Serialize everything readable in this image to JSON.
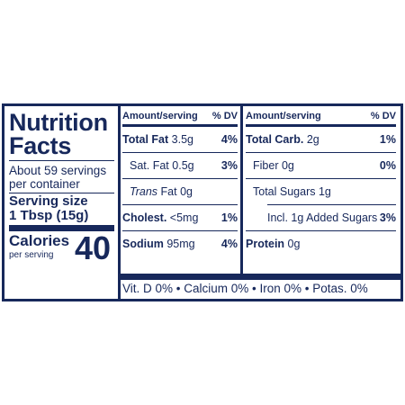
{
  "title_line1": "Nutrition",
  "title_line2": "Facts",
  "servings_per_container": "About 59 servings per container",
  "serving_size_label": "Serving size",
  "serving_size_value": "1 Tbsp (15g)",
  "calories_label": "Calories",
  "calories_sub": "per serving",
  "calories_value": "40",
  "col1": {
    "header_left": "Amount/serving",
    "header_right": "% DV",
    "rows": [
      {
        "name": "Total Fat",
        "amount": "3.5g",
        "dv": "4%"
      },
      {
        "name": "Sat. Fat",
        "amount": "0.5g",
        "dv": "3%"
      },
      {
        "name_italic": "Trans",
        "name": "Fat",
        "amount": "0g",
        "dv": ""
      },
      {
        "name": "Cholest.",
        "amount": "<5mg",
        "dv": "1%"
      },
      {
        "name": "Sodium",
        "amount": "95mg",
        "dv": "4%"
      }
    ]
  },
  "col2": {
    "header_left": "Amount/serving",
    "header_right": "% DV",
    "rows": [
      {
        "name": "Total Carb.",
        "amount": "2g",
        "dv": "1%"
      },
      {
        "name": "Fiber",
        "amount": "0g",
        "dv": "0%"
      },
      {
        "name": "Total Sugars",
        "amount": "1g",
        "dv": ""
      },
      {
        "name": "Incl. 1g Added Sugars",
        "amount": "",
        "dv": "3%"
      },
      {
        "name": "Protein",
        "amount": "0g",
        "dv": ""
      }
    ]
  },
  "vitamins": "Vit. D 0% • Calcium 0% • Iron 0% • Potas. 0%"
}
